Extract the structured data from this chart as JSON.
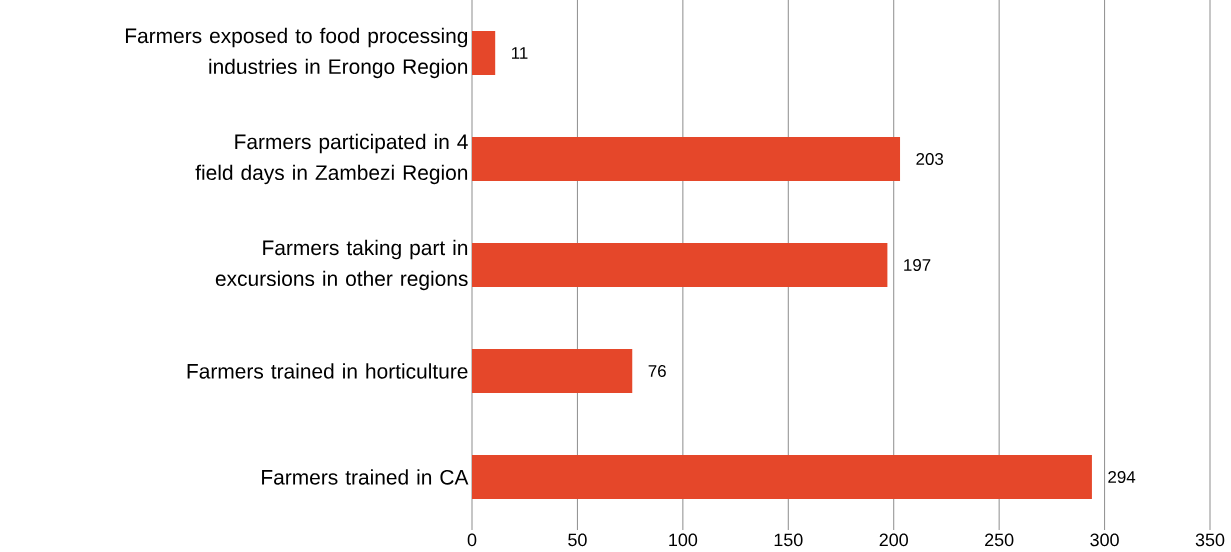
{
  "chart_data": {
    "type": "bar",
    "orientation": "horizontal",
    "categories": [
      "Farmers exposed to food processing industries in Erongo Region",
      "Farmers participated in 4 field days in Zambezi Region",
      "Farmers taking part in excursions in other regions",
      "Farmers trained in horticulture",
      "Farmers trained in CA"
    ],
    "values": [
      11,
      203,
      197,
      76,
      294
    ],
    "color": "#e5472a",
    "xlim": [
      0,
      350
    ],
    "xticks": [
      0,
      50,
      100,
      150,
      200,
      250,
      300,
      350
    ],
    "grid": "x",
    "data_labels": true
  }
}
